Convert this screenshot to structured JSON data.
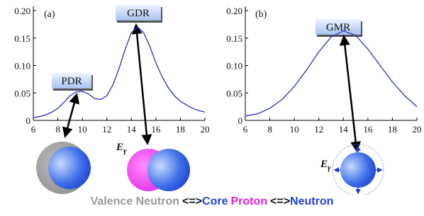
{
  "chart_data": [
    {
      "type": "line",
      "annotations": [
        "(a)",
        "PDR",
        "GDR",
        "E",
        "γ"
      ],
      "x": [
        6,
        6.5,
        7,
        7.5,
        8,
        8.5,
        9,
        9.5,
        10,
        10.5,
        11,
        11.5,
        12,
        12.5,
        13,
        13.5,
        14,
        14.5,
        15,
        15.5,
        16,
        16.5,
        17,
        17.5,
        18,
        18.5,
        19,
        19.5,
        20
      ],
      "values": [
        0.005,
        0.007,
        0.01,
        0.015,
        0.022,
        0.033,
        0.045,
        0.052,
        0.053,
        0.048,
        0.04,
        0.038,
        0.045,
        0.065,
        0.095,
        0.13,
        0.16,
        0.17,
        0.16,
        0.135,
        0.105,
        0.08,
        0.06,
        0.045,
        0.035,
        0.028,
        0.022,
        0.018,
        0.015
      ],
      "color": "#2a2fc8",
      "xlim": [
        6,
        20
      ],
      "xticks": [
        6,
        8,
        10,
        12,
        14,
        16,
        18,
        20
      ],
      "ylim": [
        0,
        0.2
      ],
      "yticks": [
        0,
        0.05,
        {
          "value": 0.1,
          "label": "0.10"
        },
        0.15,
        {
          "value": 0.2,
          "label": "0.20"
        }
      ]
    },
    {
      "type": "line",
      "annotations": [
        "(b)",
        "GMR",
        "E",
        "γ"
      ],
      "x": [
        6,
        7,
        8,
        9,
        10,
        11,
        12,
        13,
        14,
        15,
        16,
        17,
        18,
        19,
        20
      ],
      "values": [
        0.008,
        0.012,
        0.022,
        0.038,
        0.062,
        0.092,
        0.125,
        0.152,
        0.163,
        0.155,
        0.13,
        0.1,
        0.07,
        0.045,
        0.025
      ],
      "color": "#2a2fc8",
      "xlim": [
        6,
        20
      ],
      "xticks": [
        6,
        8,
        10,
        12,
        14,
        16,
        18,
        20
      ],
      "ylim": [
        0,
        0.2
      ],
      "yticks": [
        0,
        0.05,
        {
          "value": 0.1,
          "label": "0.10"
        },
        0.15,
        {
          "value": 0.2,
          "label": "0.20"
        }
      ]
    }
  ],
  "footer": [
    {
      "text": "Valence Neutron",
      "color": "#9a9a9a"
    },
    {
      "text": "<=>",
      "color": "#111111"
    },
    {
      "text": "Core",
      "color": "#1f3fe0"
    },
    {
      "text": "Proton",
      "color": "#e020e0"
    },
    {
      "text": "<=>",
      "color": "#111111"
    },
    {
      "text": "Neutron",
      "color": "#1f3fe0"
    }
  ]
}
